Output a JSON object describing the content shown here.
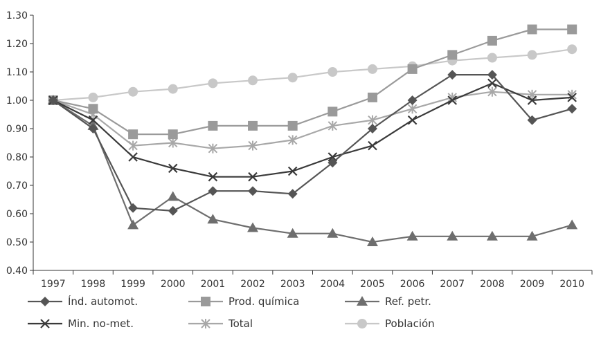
{
  "chart_data": {
    "type": "line",
    "title": "",
    "xlabel": "",
    "ylabel": "",
    "categories": [
      "1997",
      "1998",
      "1999",
      "2000",
      "2001",
      "2002",
      "2003",
      "2004",
      "2005",
      "2006",
      "2007",
      "2008",
      "2009",
      "2010"
    ],
    "ylim": [
      0.4,
      1.3
    ],
    "yticks": [
      "0.40",
      "0.50",
      "0.60",
      "0.70",
      "0.80",
      "0.90",
      "1.00",
      "1.10",
      "1.20",
      "1.30"
    ],
    "grid": false,
    "legend_position": "bottom",
    "series": [
      {
        "name": "Índ. automot.",
        "marker": "diamond",
        "color": "#555555",
        "values": [
          1.0,
          0.9,
          0.62,
          0.61,
          0.68,
          0.68,
          0.67,
          0.78,
          0.9,
          1.0,
          1.09,
          1.09,
          0.93,
          0.97
        ]
      },
      {
        "name": "Prod. química",
        "marker": "square",
        "color": "#9a9a9a",
        "values": [
          1.0,
          0.97,
          0.88,
          0.88,
          0.91,
          0.91,
          0.91,
          0.96,
          1.01,
          1.11,
          1.16,
          1.21,
          1.25,
          1.25
        ]
      },
      {
        "name": "Ref. petr.",
        "marker": "triangle",
        "color": "#6e6e6e",
        "values": [
          1.0,
          0.91,
          0.56,
          0.66,
          0.58,
          0.55,
          0.53,
          0.53,
          0.5,
          0.52,
          0.52,
          0.52,
          0.52,
          0.56
        ]
      },
      {
        "name": "Min. no-met.",
        "marker": "x",
        "color": "#3a3a3a",
        "values": [
          1.0,
          0.93,
          0.8,
          0.76,
          0.73,
          0.73,
          0.75,
          0.8,
          0.84,
          0.93,
          1.0,
          1.06,
          1.0,
          1.01
        ]
      },
      {
        "name": "Total",
        "marker": "asterisk",
        "color": "#a8a8a8",
        "values": [
          1.0,
          0.95,
          0.84,
          0.85,
          0.83,
          0.84,
          0.86,
          0.91,
          0.93,
          0.97,
          1.01,
          1.03,
          1.02,
          1.02
        ]
      },
      {
        "name": "Población",
        "marker": "circle",
        "color": "#c8c8c8",
        "values": [
          1.0,
          1.01,
          1.03,
          1.04,
          1.06,
          1.07,
          1.08,
          1.1,
          1.11,
          1.12,
          1.14,
          1.15,
          1.16,
          1.18
        ]
      }
    ]
  }
}
